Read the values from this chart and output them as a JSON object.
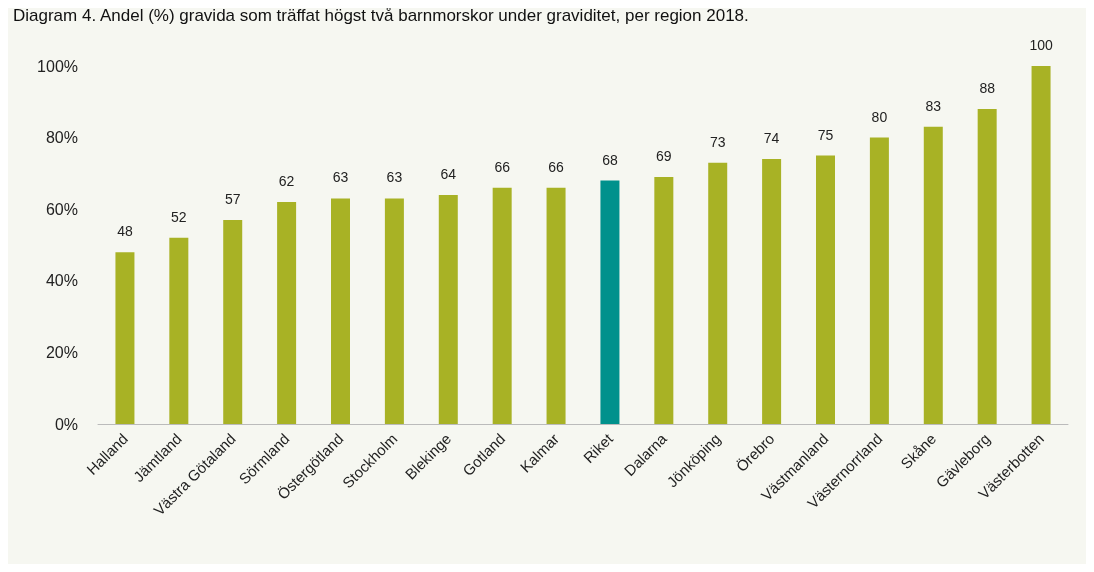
{
  "chart_data": {
    "type": "bar",
    "title": "Diagram 4. Andel (%) gravida som träffat högst två barnmorskor under graviditet, per region 2018.",
    "categories": [
      "Halland",
      "Jämtland",
      "Västra Götaland",
      "Sörmland",
      "Östergötland",
      "Stockholm",
      "Blekinge",
      "Gotland",
      "Kalmar",
      "Riket",
      "Dalarna",
      "Jönköping",
      "Örebro",
      "Västmanland",
      "Västernorrland",
      "Skåne",
      "Gävleborg",
      "Västerbotten"
    ],
    "values": [
      48,
      52,
      57,
      62,
      63,
      63,
      64,
      66,
      66,
      68,
      69,
      73,
      74,
      75,
      80,
      83,
      88,
      100
    ],
    "colors": [
      "#a8b225",
      "#a8b225",
      "#a8b225",
      "#a8b225",
      "#a8b225",
      "#a8b225",
      "#a8b225",
      "#a8b225",
      "#a8b225",
      "#00918c",
      "#a8b225",
      "#a8b225",
      "#a8b225",
      "#a8b225",
      "#a8b225",
      "#a8b225",
      "#a8b225",
      "#a8b225"
    ],
    "ylim": [
      0,
      100
    ],
    "yticks": [
      {
        "value": 0,
        "label": "0%"
      },
      {
        "value": 20,
        "label": "20%"
      },
      {
        "value": 40,
        "label": "40%"
      },
      {
        "value": 60,
        "label": "60%"
      },
      {
        "value": 80,
        "label": "80%"
      },
      {
        "value": 100,
        "label": "100%"
      }
    ],
    "data_labels": true
  }
}
